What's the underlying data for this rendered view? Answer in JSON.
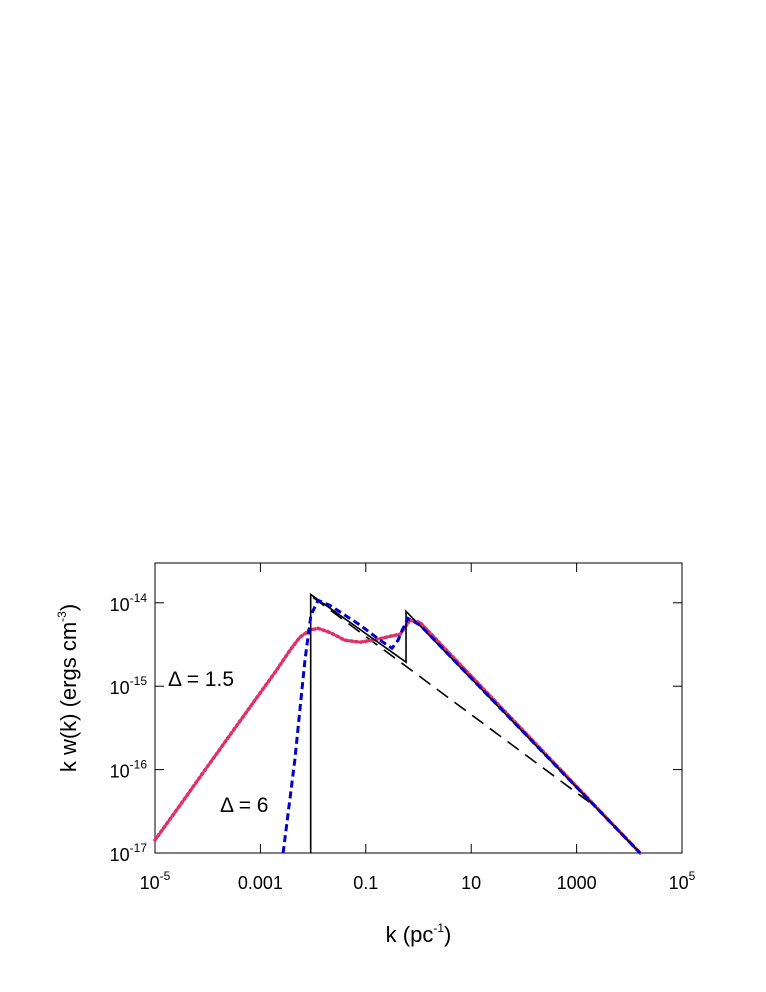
{
  "chart_data": {
    "type": "line",
    "xlabel": {
      "text": "k (pc",
      "sup": "-1",
      "tail": ")"
    },
    "ylabel": {
      "text": "k w(k) (ergs cm",
      "sup": "-3",
      "tail": ")"
    },
    "xscale": "log",
    "yscale": "log",
    "xlim": [
      1e-05,
      100000.0
    ],
    "ylim": [
      1e-17,
      3e-14
    ],
    "xticks": [
      {
        "value": 1e-05,
        "label": "10",
        "sup": "-5"
      },
      0.001,
      0.1,
      10,
      1000,
      {
        "value": 100000.0,
        "label": "10",
        "sup": "5"
      }
    ],
    "yticks": [
      {
        "value": 1e-17,
        "label": "10",
        "sup": "-17"
      },
      {
        "value": 1e-16,
        "label": "10",
        "sup": "-16"
      },
      {
        "value": 1e-15,
        "label": "10",
        "sup": "-15"
      },
      {
        "value": 1e-14,
        "label": "10",
        "sup": "-14"
      }
    ],
    "annotations": [
      "Δ = 1.5",
      "Δ = 6"
    ],
    "series": [
      {
        "color": "#e0306a",
        "dash": "dotted",
        "x": [
          1e-05,
          3e-05,
          8.9e-05,
          0.000265,
          0.00079,
          0.0019,
          0.00365,
          0.0056,
          0.0087,
          0.0124,
          0.021,
          0.04,
          0.078,
          0.15,
          0.29,
          0.45,
          0.69,
          1.07,
          16000
        ],
        "values": [
          1.43e-17,
          3.76e-17,
          9.9e-17,
          2.6e-16,
          6.8e-16,
          1.47e-15,
          2.7e-15,
          3.86e-15,
          4.7e-15,
          4.95e-15,
          4.4e-15,
          3.56e-15,
          3.37e-15,
          3.6e-15,
          3.97e-15,
          4.2e-15,
          6.2e-15,
          5.8e-15,
          1e-17
        ]
      },
      {
        "color": "#0000cc",
        "dash": "dashed",
        "x": [
          0.0027,
          0.0045,
          0.007,
          0.0091,
          0.0124,
          0.021,
          0.078,
          0.186,
          0.314,
          0.41,
          0.49,
          0.63,
          1.07,
          16000
        ],
        "values": [
          1e-17,
          1.3e-16,
          2.05e-15,
          7.1e-15,
          1.07e-14,
          9.3e-15,
          5.4e-15,
          3.56e-15,
          2.85e-15,
          3.56e-15,
          4.7e-15,
          6.5e-15,
          5.4e-15,
          1e-17
        ]
      },
      {
        "color": "#000000",
        "dash": "solid",
        "x": [
          0.009,
          0.009,
          0.58,
          0.58,
          16000
        ],
        "values": [
          1e-17,
          1.26e-14,
          1.94e-15,
          7.9e-15,
          1e-17
        ]
      },
      {
        "color": "#000000",
        "dash": "longdash",
        "x": [
          0.01,
          2780,
          16000
        ],
        "values": [
          1.16e-14,
          3.27e-17,
          1e-17
        ]
      }
    ]
  }
}
